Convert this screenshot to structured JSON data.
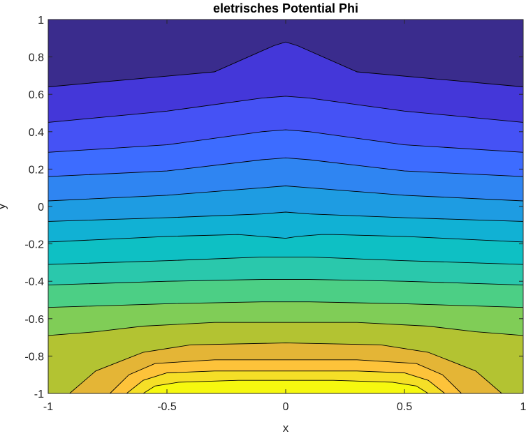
{
  "chart_data": {
    "type": "contour",
    "title": "eletrisches Potential Phi",
    "xlabel": "x",
    "ylabel": "y",
    "xlim": [
      -1,
      1
    ],
    "ylim": [
      -1,
      1
    ],
    "x_ticks": [
      "-1",
      "-0.5",
      "0",
      "0.5",
      "1"
    ],
    "y_ticks": [
      "-1",
      "-0.8",
      "-0.6",
      "-0.4",
      "-0.2",
      "0",
      "0.2",
      "0.4",
      "0.6",
      "0.8",
      "1"
    ],
    "grid": false,
    "colormap": "parula",
    "colors": [
      "#3a2c8d",
      "#4437d9",
      "#4552f5",
      "#3d6cff",
      "#2f85f2",
      "#1e9ce2",
      "#11b1d4",
      "#0ec0c4",
      "#2ac8ac",
      "#4ccf85",
      "#80cd57",
      "#b3c332",
      "#e4b536",
      "#fdc33a",
      "#f5df27",
      "#f6f80f"
    ],
    "contours": [
      {
        "x": [
          -1,
          -0.3,
          -0.05,
          0,
          0.05,
          0.3,
          1
        ],
        "y": [
          0.64,
          0.72,
          0.86,
          0.88,
          0.86,
          0.72,
          0.64
        ]
      },
      {
        "x": [
          -1,
          -0.5,
          -0.1,
          0,
          0.1,
          0.5,
          1
        ],
        "y": [
          0.45,
          0.51,
          0.58,
          0.59,
          0.58,
          0.51,
          0.45
        ]
      },
      {
        "x": [
          -1,
          -0.5,
          -0.1,
          0,
          0.1,
          0.5,
          1
        ],
        "y": [
          0.29,
          0.33,
          0.4,
          0.41,
          0.4,
          0.33,
          0.29
        ]
      },
      {
        "x": [
          -1,
          -0.5,
          -0.1,
          0,
          0.1,
          0.5,
          1
        ],
        "y": [
          0.16,
          0.19,
          0.25,
          0.26,
          0.25,
          0.19,
          0.16
        ]
      },
      {
        "x": [
          -1,
          -0.5,
          -0.1,
          0,
          0.1,
          0.5,
          1
        ],
        "y": [
          0.03,
          0.06,
          0.1,
          0.11,
          0.1,
          0.06,
          0.03
        ]
      },
      {
        "x": [
          -1,
          -0.5,
          -0.1,
          0,
          0.1,
          0.5,
          1
        ],
        "y": [
          -0.08,
          -0.06,
          -0.04,
          -0.03,
          -0.04,
          -0.06,
          -0.08
        ]
      },
      {
        "x": [
          -1,
          -0.5,
          -0.2,
          -0.1,
          0,
          0.05,
          0.15,
          0.2,
          0.5,
          1
        ],
        "y": [
          -0.19,
          -0.16,
          -0.15,
          -0.16,
          -0.17,
          -0.16,
          -0.15,
          -0.15,
          -0.16,
          -0.19
        ]
      },
      {
        "x": [
          -1,
          -0.5,
          -0.1,
          0,
          0.1,
          0.5,
          1
        ],
        "y": [
          -0.31,
          -0.29,
          -0.27,
          -0.27,
          -0.27,
          -0.29,
          -0.31
        ]
      },
      {
        "x": [
          -1,
          -0.5,
          -0.1,
          0,
          0.1,
          0.5,
          1
        ],
        "y": [
          -0.42,
          -0.4,
          -0.39,
          -0.39,
          -0.39,
          -0.4,
          -0.42
        ]
      },
      {
        "x": [
          -1,
          -0.5,
          -0.1,
          0,
          0.1,
          0.5,
          1
        ],
        "y": [
          -0.54,
          -0.52,
          -0.51,
          -0.51,
          -0.51,
          -0.52,
          -0.54
        ]
      },
      {
        "x": [
          -1,
          -0.8,
          -0.6,
          -0.3,
          0,
          0.3,
          0.6,
          0.8,
          1
        ],
        "y": [
          -0.69,
          -0.67,
          -0.64,
          -0.62,
          -0.62,
          -0.62,
          -0.64,
          -0.67,
          -0.69
        ]
      },
      {
        "x": [
          -0.91,
          -0.8,
          -0.6,
          -0.4,
          0,
          0.4,
          0.6,
          0.8,
          0.91
        ],
        "y": [
          -1,
          -0.88,
          -0.78,
          -0.74,
          -0.73,
          -0.74,
          -0.78,
          -0.88,
          -1
        ]
      },
      {
        "x": [
          -0.74,
          -0.66,
          -0.55,
          -0.3,
          0,
          0.3,
          0.55,
          0.66,
          0.74
        ],
        "y": [
          -1,
          -0.9,
          -0.84,
          -0.82,
          -0.82,
          -0.82,
          -0.84,
          -0.9,
          -1
        ]
      },
      {
        "x": [
          -0.67,
          -0.6,
          -0.5,
          -0.3,
          0,
          0.3,
          0.5,
          0.6,
          0.67
        ],
        "y": [
          -1,
          -0.93,
          -0.89,
          -0.88,
          -0.88,
          -0.88,
          -0.89,
          -0.93,
          -1
        ]
      },
      {
        "x": [
          -0.6,
          -0.55,
          -0.45,
          -0.2,
          0,
          0.2,
          0.45,
          0.55,
          0.6
        ],
        "y": [
          -1,
          -0.96,
          -0.94,
          -0.93,
          -0.93,
          -0.93,
          -0.94,
          -0.96,
          -1
        ]
      }
    ]
  }
}
